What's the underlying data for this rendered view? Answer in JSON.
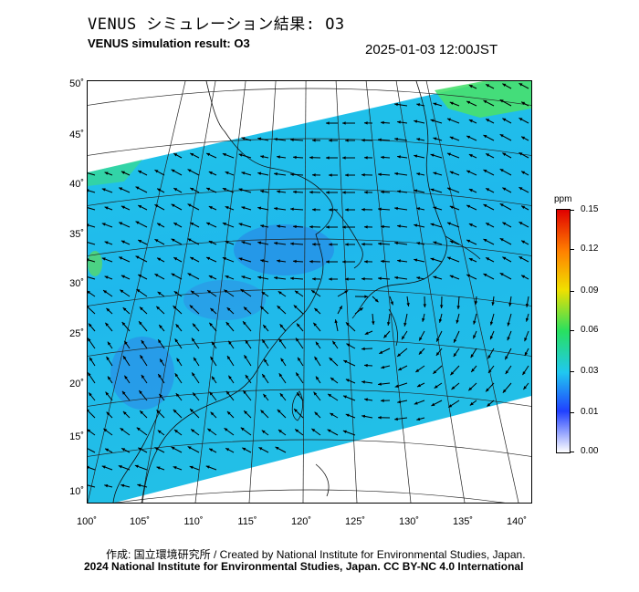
{
  "header": {
    "title_jp": "VENUS シミュレーション結果: O3",
    "title_en": "VENUS simulation result: O3",
    "timestamp": "2025-01-03 12:00JST"
  },
  "map": {
    "lat_labels": [
      "50˚",
      "45˚",
      "40˚",
      "35˚",
      "30˚",
      "25˚",
      "20˚",
      "15˚",
      "10˚"
    ],
    "lon_labels": [
      "100˚",
      "105˚",
      "110˚",
      "115˚",
      "120˚",
      "125˚",
      "130˚",
      "135˚",
      "140˚"
    ],
    "background_color": "#ffffff",
    "field_colors": {
      "low": "#2f6fe8",
      "mid": "#21bfe8",
      "high": "#3ae07a"
    }
  },
  "colorbar": {
    "unit": "ppm",
    "ticks": [
      "0.15",
      "0.12",
      "0.09",
      "0.06",
      "0.03",
      "0.01",
      "0.00"
    ],
    "colors": [
      "#ffffff",
      "#2040ff",
      "#20c8f0",
      "#28e060",
      "#f0e000",
      "#ff8000",
      "#e00000"
    ]
  },
  "footer": {
    "credit_1": "作成: 国立環境研究所 / Created by National Institute for Environmental Studies, Japan.",
    "credit_2": "2024 National Institute for Environmental Studies, Japan. CC BY-NC 4.0 International"
  }
}
